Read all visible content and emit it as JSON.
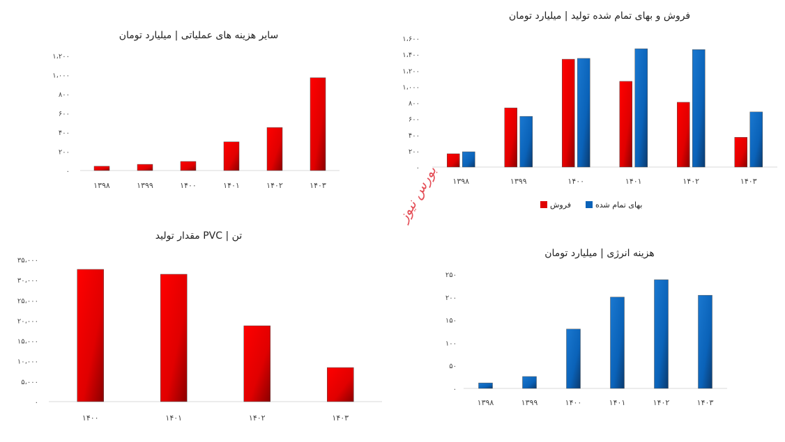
{
  "colors": {
    "red": "#e00000",
    "red_dark": "#8a0000",
    "blue": "#0a62b8",
    "blue_dark": "#0a3a6e",
    "axis": "#d9d9d9"
  },
  "watermark": "بورس نیوز",
  "chart_data": [
    {
      "id": "other-costs",
      "type": "bar",
      "title": "سایر هزینه های عملیاتی | میلیارد تومان",
      "categories": [
        "۱۳۹۸",
        "۱۳۹۹",
        "۱۴۰۰",
        "۱۴۰۱",
        "۱۴۰۲",
        "۱۴۰۳"
      ],
      "series": [
        {
          "name": "",
          "color": "red",
          "values": [
            45,
            65,
            95,
            300,
            450,
            970
          ]
        }
      ],
      "ylim": [
        0,
        1200
      ],
      "yticks": [
        0,
        200,
        400,
        600,
        800,
        1000,
        1200
      ],
      "ytick_labels": [
        "۰",
        "۲۰۰",
        "۴۰۰",
        "۶۰۰",
        "۸۰۰",
        "۱،۰۰۰",
        "۱،۲۰۰"
      ],
      "grid": false
    },
    {
      "id": "sales-cost",
      "type": "bar",
      "title": "فروش و بهای تمام شده تولید | میلیارد تومان",
      "categories": [
        "۱۳۹۸",
        "۱۳۹۹",
        "۱۴۰۰",
        "۱۴۰۱",
        "۱۴۰۲",
        "۱۴۰۳"
      ],
      "series": [
        {
          "name": "فروش",
          "color": "red",
          "values": [
            165,
            735,
            1340,
            1065,
            805,
            370
          ]
        },
        {
          "name": "بهای تمام شده",
          "color": "blue",
          "values": [
            190,
            630,
            1350,
            1470,
            1460,
            685
          ]
        }
      ],
      "ylim": [
        0,
        1600
      ],
      "yticks": [
        0,
        200,
        400,
        600,
        800,
        1000,
        1200,
        1400,
        1600
      ],
      "ytick_labels": [
        "۰",
        "۲۰۰",
        "۴۰۰",
        "۶۰۰",
        "۸۰۰",
        "۱،۰۰۰",
        "۱،۲۰۰",
        "۱،۴۰۰",
        "۱،۶۰۰"
      ],
      "legend": "bottom",
      "grid": false
    },
    {
      "id": "pvc-production",
      "type": "bar",
      "title": "مقدار تولید PVC | تن",
      "categories": [
        "۱۴۰۰",
        "۱۴۰۱",
        "۱۴۰۲",
        "۱۴۰۳"
      ],
      "series": [
        {
          "name": "",
          "color": "red",
          "values": [
            32600,
            31400,
            18700,
            8400
          ]
        }
      ],
      "ylim": [
        0,
        35000
      ],
      "yticks": [
        0,
        5000,
        10000,
        15000,
        20000,
        25000,
        30000,
        35000
      ],
      "ytick_labels": [
        "۰",
        "۵،۰۰۰",
        "۱۰،۰۰۰",
        "۱۵،۰۰۰",
        "۲۰،۰۰۰",
        "۲۵،۰۰۰",
        "۳۰،۰۰۰",
        "۳۵،۰۰۰"
      ],
      "grid": false
    },
    {
      "id": "energy-cost",
      "type": "bar",
      "title": "هزینه انرژی | میلیارد تومان",
      "categories": [
        "۱۳۹۸",
        "۱۳۹۹",
        "۱۴۰۰",
        "۱۴۰۱",
        "۱۴۰۲",
        "۱۴۰۳"
      ],
      "series": [
        {
          "name": "",
          "color": "blue",
          "values": [
            12,
            26,
            130,
            200,
            238,
            204
          ]
        }
      ],
      "ylim": [
        0,
        250
      ],
      "yticks": [
        0,
        50,
        100,
        150,
        200,
        250
      ],
      "ytick_labels": [
        "۰",
        "۵۰",
        "۱۰۰",
        "۱۵۰",
        "۲۰۰",
        "۲۵۰"
      ],
      "grid": false
    }
  ]
}
